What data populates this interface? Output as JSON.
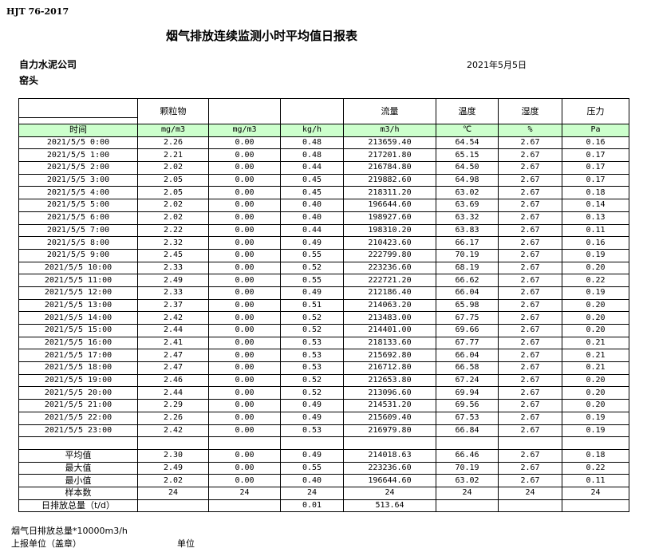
{
  "standard": "HJT  76-2017",
  "title": "烟气排放连续监测小时平均值日报表",
  "company": "自力水泥公司",
  "site": "窑头",
  "date": "2021年5月5日",
  "header": [
    "",
    "颗粒物",
    "",
    "",
    "流量",
    "温度",
    "湿度",
    "压力"
  ],
  "units": [
    "时间",
    "mg/m3",
    "mg/m3",
    "kg/h",
    "m3/h",
    "℃",
    "%",
    "Pa"
  ],
  "rows": [
    [
      "2021/5/5 0:00",
      "2.26",
      "0.00",
      "0.48",
      "213659.40",
      "64.54",
      "2.67",
      "0.16"
    ],
    [
      "2021/5/5 1:00",
      "2.21",
      "0.00",
      "0.48",
      "217201.80",
      "65.15",
      "2.67",
      "0.17"
    ],
    [
      "2021/5/5 2:00",
      "2.02",
      "0.00",
      "0.44",
      "216784.80",
      "64.50",
      "2.67",
      "0.17"
    ],
    [
      "2021/5/5 3:00",
      "2.05",
      "0.00",
      "0.45",
      "219882.60",
      "64.98",
      "2.67",
      "0.17"
    ],
    [
      "2021/5/5 4:00",
      "2.05",
      "0.00",
      "0.45",
      "218311.20",
      "63.02",
      "2.67",
      "0.18"
    ],
    [
      "2021/5/5 5:00",
      "2.02",
      "0.00",
      "0.40",
      "196644.60",
      "63.69",
      "2.67",
      "0.14"
    ],
    [
      "2021/5/5 6:00",
      "2.02",
      "0.00",
      "0.40",
      "198927.60",
      "63.32",
      "2.67",
      "0.13"
    ],
    [
      "2021/5/5 7:00",
      "2.22",
      "0.00",
      "0.44",
      "198310.20",
      "63.83",
      "2.67",
      "0.11"
    ],
    [
      "2021/5/5 8:00",
      "2.32",
      "0.00",
      "0.49",
      "210423.60",
      "66.17",
      "2.67",
      "0.16"
    ],
    [
      "2021/5/5 9:00",
      "2.45",
      "0.00",
      "0.55",
      "222799.80",
      "70.19",
      "2.67",
      "0.19"
    ],
    [
      "2021/5/5 10:00",
      "2.33",
      "0.00",
      "0.52",
      "223236.60",
      "68.19",
      "2.67",
      "0.20"
    ],
    [
      "2021/5/5 11:00",
      "2.49",
      "0.00",
      "0.55",
      "222721.20",
      "66.62",
      "2.67",
      "0.22"
    ],
    [
      "2021/5/5 12:00",
      "2.33",
      "0.00",
      "0.49",
      "212186.40",
      "66.04",
      "2.67",
      "0.19"
    ],
    [
      "2021/5/5 13:00",
      "2.37",
      "0.00",
      "0.51",
      "214063.20",
      "65.98",
      "2.67",
      "0.20"
    ],
    [
      "2021/5/5 14:00",
      "2.42",
      "0.00",
      "0.52",
      "213483.00",
      "67.75",
      "2.67",
      "0.20"
    ],
    [
      "2021/5/5 15:00",
      "2.44",
      "0.00",
      "0.52",
      "214401.00",
      "69.66",
      "2.67",
      "0.20"
    ],
    [
      "2021/5/5 16:00",
      "2.41",
      "0.00",
      "0.53",
      "218133.60",
      "67.77",
      "2.67",
      "0.21"
    ],
    [
      "2021/5/5 17:00",
      "2.47",
      "0.00",
      "0.53",
      "215692.80",
      "66.04",
      "2.67",
      "0.21"
    ],
    [
      "2021/5/5 18:00",
      "2.47",
      "0.00",
      "0.53",
      "216712.80",
      "66.58",
      "2.67",
      "0.21"
    ],
    [
      "2021/5/5 19:00",
      "2.46",
      "0.00",
      "0.52",
      "212653.80",
      "67.24",
      "2.67",
      "0.20"
    ],
    [
      "2021/5/5 20:00",
      "2.44",
      "0.00",
      "0.52",
      "213096.60",
      "69.94",
      "2.67",
      "0.20"
    ],
    [
      "2021/5/5 21:00",
      "2.29",
      "0.00",
      "0.49",
      "214531.20",
      "69.56",
      "2.67",
      "0.20"
    ],
    [
      "2021/5/5 22:00",
      "2.26",
      "0.00",
      "0.49",
      "215609.40",
      "67.53",
      "2.67",
      "0.19"
    ],
    [
      "2021/5/5 23:00",
      "2.42",
      "0.00",
      "0.53",
      "216979.80",
      "66.84",
      "2.67",
      "0.19"
    ]
  ],
  "summary": [
    [
      "平均值",
      "2.30",
      "0.00",
      "0.49",
      "214018.63",
      "66.46",
      "2.67",
      "0.18"
    ],
    [
      "最大值",
      "2.49",
      "0.00",
      "0.55",
      "223236.60",
      "70.19",
      "2.67",
      "0.22"
    ],
    [
      "最小值",
      "2.02",
      "0.00",
      "0.40",
      "196644.60",
      "63.02",
      "2.67",
      "0.11"
    ],
    [
      "样本数",
      "24",
      "24",
      "24",
      "24",
      "24",
      "24",
      "24"
    ],
    [
      "日排放总量（t/d）",
      "",
      "",
      "0.01",
      "513.64",
      "",
      "",
      ""
    ]
  ],
  "footer": {
    "note": "烟气日排放总量*10000m3/h",
    "reporter": "上报单位（盖章）",
    "unit": "单位"
  }
}
